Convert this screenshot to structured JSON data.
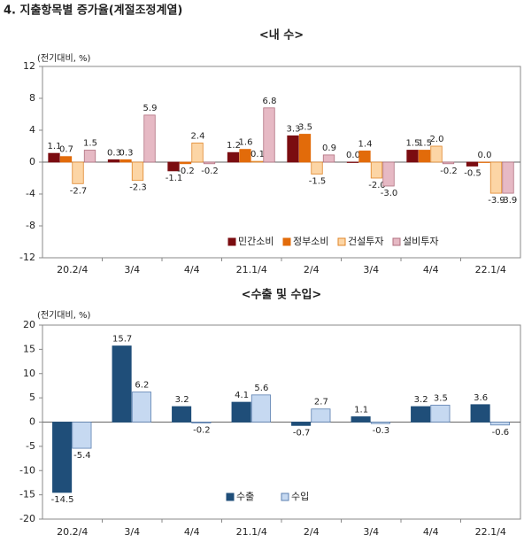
{
  "title": "4. 지출항목별 증가율(계절조정계열)",
  "chart_data": [
    {
      "type": "bar",
      "title": "<내      수>",
      "ylabel": "(전기대비, %)",
      "categories": [
        "20.2/4",
        "3/4",
        "4/4",
        "21.1/4",
        "2/4",
        "3/4",
        "4/4",
        "22.1/4"
      ],
      "ylim": [
        -12,
        12
      ],
      "yticks": [
        12,
        8,
        4,
        0,
        -4,
        -8,
        -12
      ],
      "legend": "bottom-right",
      "series": [
        {
          "name": "민간소비",
          "color": "#7b0c10",
          "values": [
            1.1,
            0.3,
            -1.1,
            1.2,
            3.3,
            0.0,
            1.5,
            -0.5
          ],
          "value_labels": [
            "1.1",
            "0.3",
            "-1.1",
            "1.2",
            "3.3",
            "0.0",
            "1.5",
            "-0.5"
          ]
        },
        {
          "name": "정부소비",
          "color": "#e26b0a",
          "values": [
            0.7,
            0.3,
            -0.2,
            1.6,
            3.5,
            1.4,
            1.5,
            0.0
          ],
          "value_labels": [
            "0.7",
            "0.3",
            "-0.2",
            "1.6",
            "3.5",
            "1.4",
            "1.5",
            "0.0"
          ]
        },
        {
          "name": "건설투자",
          "color": "#fcd5a5",
          "values": [
            -2.7,
            -2.3,
            2.4,
            0.1,
            -1.5,
            -2.0,
            2.0,
            -3.9
          ],
          "value_labels": [
            "-2.7",
            "-2.3",
            "2.4",
            "0.1",
            "-1.5",
            "-2.0",
            "2.0",
            "-3.9"
          ]
        },
        {
          "name": "설비투자",
          "color": "#e6b9c4",
          "values": [
            1.5,
            5.9,
            -0.2,
            6.8,
            0.9,
            -3.0,
            -0.2,
            -3.9
          ],
          "value_labels": [
            "1.5",
            "5.9",
            "-0.2",
            "6.8",
            "0.9",
            "-3.0",
            "-0.2",
            "-3.9"
          ]
        }
      ]
    },
    {
      "type": "bar",
      "title": "<수출 및 수입>",
      "ylabel": "(전기대비, %)",
      "categories": [
        "20.2/4",
        "3/4",
        "4/4",
        "21.1/4",
        "2/4",
        "3/4",
        "4/4",
        "22.1/4"
      ],
      "ylim": [
        -20,
        20
      ],
      "yticks": [
        20,
        15,
        10,
        5,
        0,
        -5,
        -10,
        -15,
        -20
      ],
      "legend": "bottom-center",
      "series": [
        {
          "name": "수출",
          "color": "#1f4e79",
          "values": [
            -14.5,
            15.7,
            3.2,
            4.1,
            -0.7,
            1.1,
            3.2,
            3.6
          ],
          "value_labels": [
            "-14.5",
            "15.7",
            "3.2",
            "4.1",
            "-0.7",
            "1.1",
            "3.2",
            "3.6"
          ]
        },
        {
          "name": "수입",
          "color": "#c6d9f1",
          "values": [
            -5.4,
            6.2,
            -0.2,
            5.6,
            2.7,
            -0.3,
            3.5,
            -0.6
          ],
          "value_labels": [
            "-5.4",
            "6.2",
            "-0.2",
            "5.6",
            "2.7",
            "-0.3",
            "3.5",
            "-0.6"
          ]
        }
      ]
    }
  ]
}
